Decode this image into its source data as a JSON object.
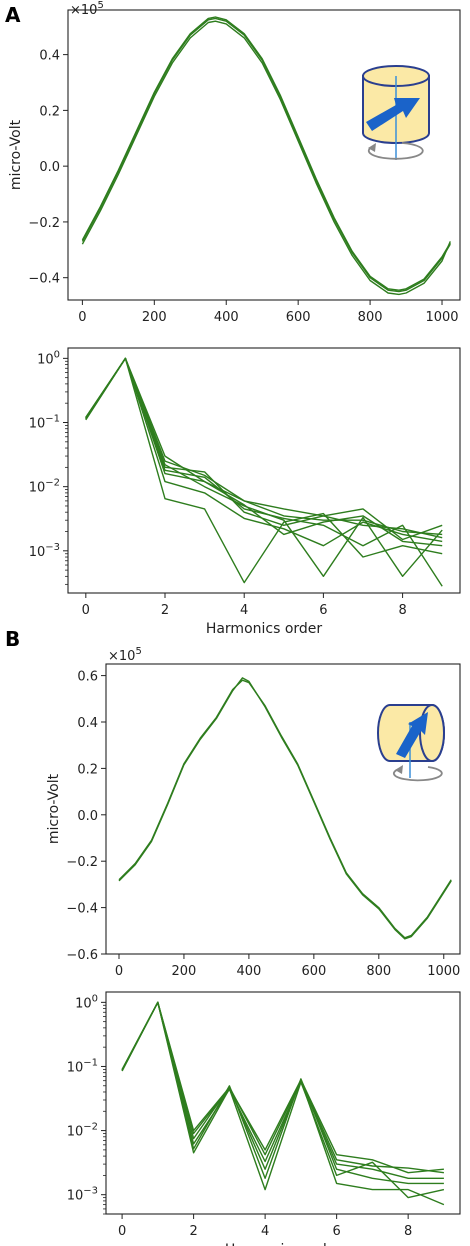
{
  "panels": {
    "a": {
      "letter": "A"
    },
    "b": {
      "letter": "B"
    }
  },
  "chart_data": [
    {
      "id": "a-signal",
      "type": "line",
      "ylabel": "micro-Volt",
      "xlabel": "",
      "multiplier_label": "×10",
      "multiplier_exponent": "5",
      "xlim": [
        -40,
        1050
      ],
      "ylim": [
        -0.48,
        0.56
      ],
      "xticks": [
        0,
        200,
        400,
        600,
        800,
        1000
      ],
      "yticks": [
        -0.4,
        -0.2,
        0.0,
        0.2,
        0.4
      ],
      "ytick_labels": [
        "−0.4",
        "−0.2",
        "0.0",
        "0.2",
        "0.4"
      ],
      "color": "#2e7d1e",
      "inset_icon": "cylinder-vertical-axis-arrow-icon",
      "series": [
        {
          "x": [
            0,
            50,
            100,
            150,
            200,
            250,
            300,
            350,
            370,
            400,
            450,
            500,
            550,
            600,
            650,
            700,
            750,
            800,
            850,
            880,
            900,
            950,
            1000,
            1023
          ],
          "values": [
            -0.27,
            -0.15,
            -0.02,
            0.12,
            0.26,
            0.38,
            0.47,
            0.525,
            0.53,
            0.52,
            0.47,
            0.38,
            0.25,
            0.1,
            -0.05,
            -0.19,
            -0.31,
            -0.4,
            -0.445,
            -0.45,
            -0.445,
            -0.41,
            -0.33,
            -0.28
          ]
        },
        {
          "x": [
            0,
            50,
            100,
            150,
            200,
            250,
            300,
            350,
            370,
            400,
            450,
            500,
            550,
            600,
            650,
            700,
            750,
            800,
            850,
            880,
            900,
            950,
            1000,
            1023
          ],
          "values": [
            -0.28,
            -0.16,
            -0.03,
            0.11,
            0.25,
            0.37,
            0.46,
            0.515,
            0.52,
            0.51,
            0.46,
            0.37,
            0.24,
            0.09,
            -0.06,
            -0.2,
            -0.32,
            -0.41,
            -0.455,
            -0.46,
            -0.455,
            -0.42,
            -0.34,
            -0.27
          ]
        },
        {
          "x": [
            0,
            50,
            100,
            150,
            200,
            250,
            300,
            350,
            370,
            400,
            450,
            500,
            550,
            600,
            650,
            700,
            750,
            800,
            850,
            880,
            900,
            950,
            1000,
            1023
          ],
          "values": [
            -0.265,
            -0.145,
            -0.015,
            0.125,
            0.265,
            0.385,
            0.475,
            0.53,
            0.535,
            0.525,
            0.475,
            0.385,
            0.255,
            0.105,
            -0.045,
            -0.185,
            -0.305,
            -0.395,
            -0.44,
            -0.445,
            -0.44,
            -0.405,
            -0.325,
            -0.275
          ]
        }
      ]
    },
    {
      "id": "a-harmonics",
      "type": "line",
      "xlabel": "Harmonics order",
      "ylabel": "",
      "yscale": "log",
      "xlim": [
        -0.45,
        9.45
      ],
      "ylim": [
        0.00022,
        1.45
      ],
      "xticks": [
        0,
        2,
        4,
        6,
        8
      ],
      "yticks": [
        0.001,
        0.01,
        0.1,
        1
      ],
      "ytick_base": "10",
      "ytick_exponents": [
        "−3",
        "−2",
        "−1",
        "0"
      ],
      "color": "#2e7d1e",
      "series": [
        {
          "x": [
            0,
            1,
            2,
            3,
            4,
            5,
            6,
            7,
            8,
            9
          ],
          "values": [
            0.11,
            1,
            0.03,
            0.012,
            0.006,
            0.0045,
            0.0035,
            0.0045,
            0.0015,
            0.0025
          ]
        },
        {
          "x": [
            0,
            1,
            2,
            3,
            4,
            5,
            6,
            7,
            8,
            9
          ],
          "values": [
            0.12,
            1,
            0.025,
            0.015,
            0.006,
            0.0035,
            0.003,
            0.003,
            0.002,
            0.0018
          ]
        },
        {
          "x": [
            0,
            1,
            2,
            3,
            4,
            5,
            6,
            7,
            8,
            9
          ],
          "values": [
            0.115,
            1,
            0.02,
            0.017,
            0.004,
            0.0025,
            0.0035,
            0.0025,
            0.0022,
            0.0016
          ]
        },
        {
          "x": [
            0,
            1,
            2,
            3,
            4,
            5,
            6,
            7,
            8,
            9
          ],
          "values": [
            0.118,
            1,
            0.016,
            0.012,
            0.0052,
            0.0018,
            0.0028,
            0.0035,
            0.0014,
            0.0012
          ]
        },
        {
          "x": [
            0,
            1,
            2,
            3,
            4,
            5,
            6,
            7,
            8,
            9
          ],
          "values": [
            0.113,
            1,
            0.012,
            0.008,
            0.0032,
            0.0022,
            0.0012,
            0.0028,
            0.0018,
            0.0014
          ]
        },
        {
          "x": [
            0,
            1,
            2,
            3,
            4,
            5,
            6,
            7,
            8,
            9
          ],
          "values": [
            0.12,
            1,
            0.0065,
            0.0045,
            0.00032,
            0.0028,
            0.0038,
            0.0008,
            0.0012,
            0.0009
          ]
        },
        {
          "x": [
            0,
            1,
            2,
            3,
            4,
            5,
            6,
            7,
            8,
            9
          ],
          "values": [
            0.116,
            1,
            0.022,
            0.01,
            0.005,
            0.003,
            0.0004,
            0.0033,
            0.0004,
            0.0021
          ]
        },
        {
          "x": [
            0,
            1,
            2,
            3,
            4,
            5,
            6,
            7,
            8,
            9
          ],
          "values": [
            0.117,
            1,
            0.018,
            0.014,
            0.0045,
            0.0032,
            0.0025,
            0.0012,
            0.0025,
            0.00028
          ]
        }
      ]
    },
    {
      "id": "b-signal",
      "type": "line",
      "ylabel": "micro-Volt",
      "xlabel": "",
      "multiplier_label": "×10",
      "multiplier_exponent": "5",
      "xlim": [
        -40,
        1050
      ],
      "ylim": [
        -0.6,
        0.65
      ],
      "xticks": [
        0,
        200,
        400,
        600,
        800,
        1000
      ],
      "yticks": [
        -0.6,
        -0.4,
        -0.2,
        0.0,
        0.2,
        0.4,
        0.6
      ],
      "ytick_labels": [
        "−0.6",
        "−0.4",
        "−0.2",
        "0.0",
        "0.2",
        "0.4",
        "0.6"
      ],
      "color": "#2e7d1e",
      "inset_icon": "cylinder-horizontal-axis-arrow-icon",
      "series": [
        {
          "x": [
            0,
            50,
            100,
            150,
            200,
            250,
            300,
            350,
            380,
            400,
            450,
            500,
            550,
            600,
            650,
            700,
            750,
            800,
            850,
            880,
            900,
            950,
            1000,
            1023
          ],
          "values": [
            -0.28,
            -0.21,
            -0.11,
            0.05,
            0.22,
            0.33,
            0.42,
            0.54,
            0.58,
            0.57,
            0.47,
            0.34,
            0.22,
            0.06,
            -0.1,
            -0.25,
            -0.34,
            -0.4,
            -0.49,
            -0.53,
            -0.52,
            -0.44,
            -0.33,
            -0.28
          ]
        },
        {
          "x": [
            0,
            50,
            100,
            150,
            200,
            250,
            300,
            350,
            380,
            400,
            450,
            500,
            550,
            600,
            650,
            700,
            750,
            800,
            850,
            880,
            900,
            950,
            1000,
            1023
          ],
          "values": [
            -0.285,
            -0.215,
            -0.115,
            0.045,
            0.215,
            0.325,
            0.415,
            0.535,
            0.59,
            0.575,
            0.465,
            0.335,
            0.215,
            0.055,
            -0.105,
            -0.255,
            -0.345,
            -0.405,
            -0.495,
            -0.535,
            -0.525,
            -0.445,
            -0.335,
            -0.285
          ]
        }
      ]
    },
    {
      "id": "b-harmonics",
      "type": "line",
      "xlabel": "Harmonics order",
      "ylabel": "",
      "yscale": "log",
      "xlim": [
        -0.45,
        9.45
      ],
      "ylim": [
        0.0005,
        1.45
      ],
      "xticks": [
        0,
        2,
        4,
        6,
        8
      ],
      "yticks": [
        0.001,
        0.01,
        0.1,
        1
      ],
      "ytick_base": "10",
      "ytick_exponents": [
        "−3",
        "−2",
        "−1",
        "0"
      ],
      "color": "#2e7d1e",
      "series": [
        {
          "x": [
            0,
            1,
            2,
            3,
            4,
            5,
            6,
            7,
            8,
            9
          ],
          "values": [
            0.085,
            1,
            0.009,
            0.046,
            0.005,
            0.062,
            0.0042,
            0.0035,
            0.0022,
            0.0025
          ]
        },
        {
          "x": [
            0,
            1,
            2,
            3,
            4,
            5,
            6,
            7,
            8,
            9
          ],
          "values": [
            0.088,
            1,
            0.0075,
            0.048,
            0.0042,
            0.06,
            0.0035,
            0.0028,
            0.0026,
            0.0022
          ]
        },
        {
          "x": [
            0,
            1,
            2,
            3,
            4,
            5,
            6,
            7,
            8,
            9
          ],
          "values": [
            0.09,
            1,
            0.0062,
            0.044,
            0.0033,
            0.058,
            0.003,
            0.0025,
            0.0018,
            0.0018
          ]
        },
        {
          "x": [
            0,
            1,
            2,
            3,
            4,
            5,
            6,
            7,
            8,
            9
          ],
          "values": [
            0.086,
            1,
            0.0052,
            0.05,
            0.0018,
            0.064,
            0.0025,
            0.0018,
            0.0015,
            0.0015
          ]
        },
        {
          "x": [
            0,
            1,
            2,
            3,
            4,
            5,
            6,
            7,
            8,
            9
          ],
          "values": [
            0.087,
            1,
            0.0045,
            0.045,
            0.0012,
            0.057,
            0.002,
            0.0032,
            0.0009,
            0.0012
          ]
        },
        {
          "x": [
            0,
            1,
            2,
            3,
            4,
            5,
            6,
            7,
            8,
            9
          ],
          "values": [
            0.089,
            1,
            0.01,
            0.047,
            0.0025,
            0.061,
            0.0015,
            0.0012,
            0.0012,
            0.0007
          ]
        }
      ]
    }
  ]
}
